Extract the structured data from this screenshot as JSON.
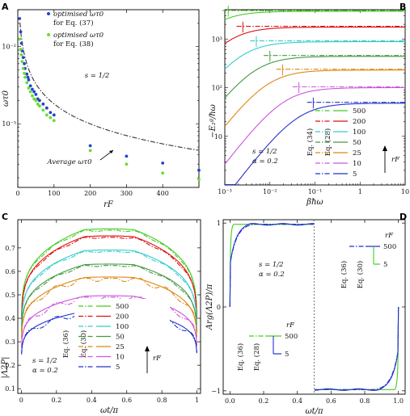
{
  "figure": {
    "background": "#ffffff"
  },
  "rf_colors": {
    "500": "#44cc22",
    "200": "#dd1111",
    "100": "#33cccc",
    "50": "#449944",
    "25": "#dd8811",
    "10": "#cc55dd",
    "5": "#2233cc"
  },
  "chart_data": [
    {
      "id": "A",
      "type": "scatter",
      "panel_label": "A",
      "xlabel": "rF",
      "ylabel": "ωτ0",
      "xlim": [
        0,
        500
      ],
      "ylim": [
        0.00015,
        0.03
      ],
      "yscale": "log",
      "xticks": [
        0,
        100,
        200,
        300,
        400
      ],
      "xtick_labels": [
        "0",
        "100",
        "200",
        "300",
        "400"
      ],
      "yticks": [
        0.001,
        0.01
      ],
      "ytick_labels": [
        "10⁻³",
        "10⁻²"
      ],
      "annotation_param": "s = 1/2",
      "annotation_average": "Average ωτ0",
      "legend": [
        {
          "label": "optimised ωτ0",
          "label2": "for Eq. (37)",
          "color": "#2244cc"
        },
        {
          "label": "optimised ωτ0",
          "label2": "for Eq. (38)",
          "color": "#66dd33"
        }
      ],
      "series": [
        {
          "name": "optimised ωτ0 for Eq. (37)",
          "color": "#2244cc",
          "x": [
            5,
            8,
            10,
            12,
            15,
            18,
            20,
            25,
            28,
            30,
            35,
            40,
            45,
            50,
            55,
            60,
            70,
            80,
            90,
            100,
            200,
            300,
            400,
            500
          ],
          "y": [
            0.023,
            0.0155,
            0.011,
            0.0088,
            0.0072,
            0.006,
            0.0052,
            0.0044,
            0.004,
            0.0037,
            0.0031,
            0.0028,
            0.0026,
            0.0024,
            0.0021,
            0.002,
            0.0018,
            0.0016,
            0.0014,
            0.0013,
            0.00052,
            0.00038,
            0.00031,
            0.00025
          ]
        },
        {
          "name": "optimised ωτ0 for Eq. (38)",
          "color": "#66dd33",
          "x": [
            5,
            8,
            10,
            12,
            15,
            18,
            20,
            25,
            30,
            35,
            40,
            45,
            50,
            55,
            60,
            70,
            80,
            90,
            100,
            200,
            300,
            400,
            500
          ],
          "y": [
            0.0125,
            0.0092,
            0.0078,
            0.0064,
            0.0052,
            0.0045,
            0.004,
            0.0034,
            0.0029,
            0.0026,
            0.0023,
            0.0021,
            0.002,
            0.0018,
            0.0017,
            0.0015,
            0.0013,
            0.0012,
            0.0011,
            0.00045,
            0.0003,
            0.00023,
            0.00019
          ]
        },
        {
          "name": "Average ωτ0",
          "style": "dashdot",
          "color": "#333333",
          "fit": {
            "a": 0.095,
            "b": 0.86
          }
        }
      ]
    },
    {
      "id": "B",
      "type": "line",
      "panel_label": "B",
      "xlabel": "βħω",
      "ylabel": "−E₂ᵍ/ħω",
      "xlim": [
        0.001,
        10
      ],
      "ylim": [
        1.0,
        4000
      ],
      "xscale": "log",
      "yscale": "log",
      "xticks": [
        0.001,
        0.01,
        0.1,
        1,
        10
      ],
      "xtick_labels": [
        "10⁻³",
        "10⁻²",
        "10⁻¹",
        "1",
        "10"
      ],
      "yticks": [
        10,
        100,
        1000
      ],
      "ytick_labels": [
        "10",
        "10²",
        "10³"
      ],
      "annotation_param": "s = 1/2",
      "annotation_param2": "α = 0.2",
      "legend_eq_left": "Eq. (34)",
      "legend_eq_right": "Eq. (28)",
      "legend_arrow_label": "rF",
      "legend_values": [
        "500",
        "200",
        "100",
        "50",
        "25",
        "10",
        "5"
      ],
      "series": [
        {
          "name": "500",
          "rf": 500,
          "plateau": 3700
        },
        {
          "name": "200",
          "rf": 200,
          "plateau": 1750
        },
        {
          "name": "100",
          "rf": 100,
          "plateau": 880
        },
        {
          "name": "50",
          "rf": 50,
          "plateau": 440
        },
        {
          "name": "25",
          "rf": 25,
          "plateau": 230
        },
        {
          "name": "10",
          "rf": 10,
          "plateau": 100
        },
        {
          "name": "5",
          "rf": 5,
          "plateau": 48
        }
      ]
    },
    {
      "id": "C",
      "type": "line",
      "panel_label": "C",
      "xlabel": "ωt/π",
      "ylabel": "|Λ2P|",
      "xlim": [
        -0.02,
        1.02
      ],
      "ylim": [
        0.08,
        0.82
      ],
      "xticks": [
        0,
        0.2,
        0.4,
        0.6,
        0.8,
        1
      ],
      "xtick_labels": [
        "0",
        "0.2",
        "0.4",
        "0.6",
        "0.8",
        "1"
      ],
      "yticks": [
        0.1,
        0.2,
        0.3,
        0.4,
        0.5,
        0.6,
        0.7
      ],
      "ytick_labels": [
        "0.1",
        "0.2",
        "0.3",
        "0.4",
        "0.5",
        "0.6",
        "0.7"
      ],
      "annotation_param": "s = 1/2",
      "annotation_param2": "α = 0.2",
      "legend_eq_left": "Eq. (36)",
      "legend_eq_right": "Eq. (30)",
      "legend_arrow_label": "rF",
      "legend_values": [
        "500",
        "200",
        "100",
        "50",
        "25",
        "10",
        "5"
      ],
      "series": [
        {
          "name": "500",
          "rf": 500,
          "peak": 0.775
        },
        {
          "name": "200",
          "rf": 200,
          "peak": 0.745
        },
        {
          "name": "100",
          "rf": 100,
          "peak": 0.685
        },
        {
          "name": "50",
          "rf": 50,
          "peak": 0.625
        },
        {
          "name": "25",
          "rf": 25,
          "peak": 0.57
        },
        {
          "name": "10",
          "rf": 10,
          "peak": 0.49
        },
        {
          "name": "5",
          "rf": 5,
          "peak": 0.425
        }
      ]
    },
    {
      "id": "D",
      "type": "line",
      "panel_label": "D",
      "xlabel": "ωt/π",
      "ylabel": "Arg(Λ2P)/π",
      "xlim": [
        -0.04,
        1.04
      ],
      "ylim": [
        -1.04,
        1.04
      ],
      "xticks": [
        0,
        0.2,
        0.4,
        0.6,
        0.8,
        1
      ],
      "xtick_labels": [
        "0.0",
        "0.2",
        "0.4",
        "0.6",
        "0.8",
        "1.0"
      ],
      "yticks": [
        -1,
        0,
        1
      ],
      "ytick_labels": [
        "−1",
        "0",
        "1"
      ],
      "annotation_param": "s = 1/2",
      "annotation_param2": "α = 0.2",
      "legend_top_eq_left": "Eq. (36)",
      "legend_top_eq_right": "Eq. (30)",
      "legend_top_values": [
        "500",
        "5"
      ],
      "legend_bottom_eq_left": "Eq. (36)",
      "legend_bottom_eq_right": "Eq. (28)",
      "legend_bottom_values": [
        "500",
        "5"
      ],
      "legend_arrow_label": "rF",
      "series": [
        {
          "name": "500",
          "rf": 500,
          "color": "#44cc22"
        },
        {
          "name": "5",
          "rf": 5,
          "color": "#2233cc"
        }
      ]
    }
  ]
}
